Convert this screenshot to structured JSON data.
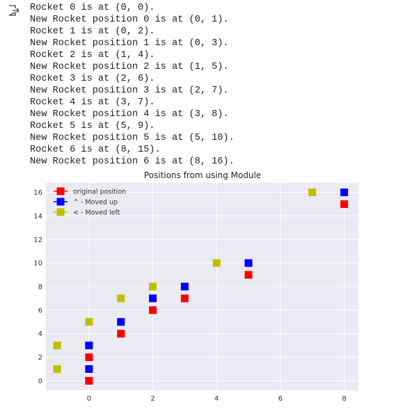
{
  "console_lines": [
    "Rocket 0 is at (0, 0).",
    "New Rocket position 0 is at (0, 1).",
    "Rocket 1 is at (0, 2).",
    "New Rocket position 1 is at (0, 3).",
    "Rocket 2 is at (1, 4).",
    "New Rocket position 2 is at (1, 5).",
    "Rocket 3 is at (2, 6).",
    "New Rocket position 3 is at (2, 7).",
    "Rocket 4 is at (3, 7).",
    "New Rocket position 4 is at (3, 8).",
    "Rocket 5 is at (5, 9).",
    "New Rocket position 5 is at (5, 10).",
    "Rocket 6 is at (8, 15).",
    "New Rocket position 6 is at (8, 16)."
  ],
  "chart_data": {
    "type": "scatter",
    "title": "Positions from using Module",
    "xlabel": "",
    "ylabel": "",
    "xlim": [
      -1.35,
      8.45
    ],
    "ylim": [
      -0.8,
      16.8
    ],
    "xticks": [
      0,
      2,
      4,
      6,
      8
    ],
    "yticks": [
      0,
      2,
      4,
      6,
      8,
      10,
      12,
      14,
      16
    ],
    "grid": true,
    "legend_position": "top-left",
    "series": [
      {
        "name": "original position",
        "color": "#ff0000",
        "marker": "square",
        "points": [
          [
            0,
            0
          ],
          [
            0,
            2
          ],
          [
            1,
            4
          ],
          [
            2,
            6
          ],
          [
            3,
            7
          ],
          [
            5,
            9
          ],
          [
            8,
            15
          ]
        ]
      },
      {
        "name": "^ - Moved up",
        "color": "#0000ff",
        "marker": "square",
        "points": [
          [
            0,
            1
          ],
          [
            0,
            3
          ],
          [
            1,
            5
          ],
          [
            2,
            7
          ],
          [
            3,
            8
          ],
          [
            5,
            10
          ],
          [
            8,
            16
          ]
        ]
      },
      {
        "name": "< - Moved left",
        "color": "#bfbf00",
        "marker": "square",
        "points": [
          [
            -1,
            1
          ],
          [
            -1,
            3
          ],
          [
            0,
            5
          ],
          [
            1,
            7
          ],
          [
            2,
            8
          ],
          [
            4,
            10
          ],
          [
            7,
            16
          ]
        ]
      }
    ]
  }
}
